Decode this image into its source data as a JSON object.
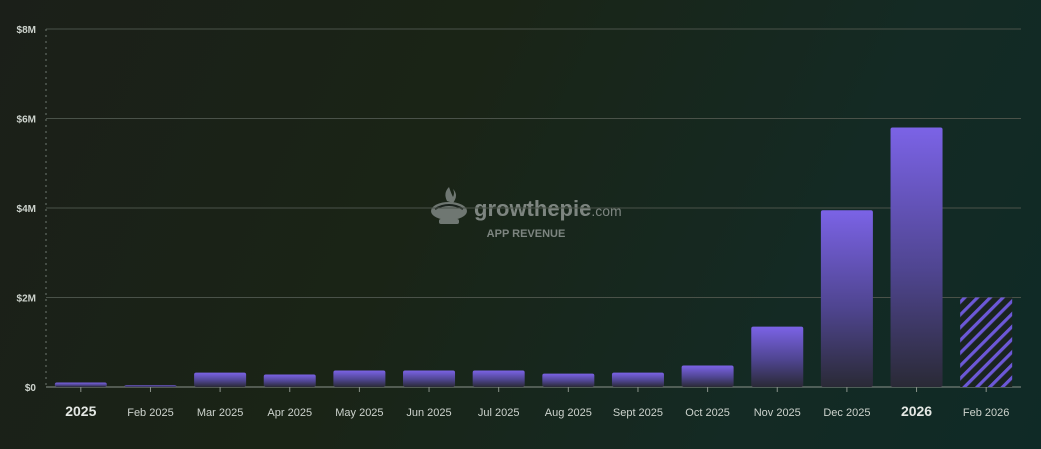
{
  "watermark": {
    "brand_main": "growthepie",
    "brand_tld": ".com",
    "metric": "APP REVENUE"
  },
  "colors": {
    "bar_top": "#7b63e6",
    "bar_bottom": "#2a2a36",
    "grid": "#4a5249",
    "hatch": "#6c58d8"
  },
  "chart_data": {
    "type": "bar",
    "title": "",
    "xlabel": "",
    "ylabel": "",
    "categories": [
      "2025",
      "Feb 2025",
      "Mar 2025",
      "Apr 2025",
      "May 2025",
      "Jun 2025",
      "Jul 2025",
      "Aug 2025",
      "Sept 2025",
      "Oct 2025",
      "Nov 2025",
      "Dec 2025",
      "2026",
      "Feb 2026"
    ],
    "year_labels": [
      "2025",
      "2026"
    ],
    "values": [
      0.1,
      0.04,
      0.32,
      0.28,
      0.37,
      0.37,
      0.37,
      0.3,
      0.32,
      0.48,
      1.35,
      3.95,
      5.8,
      2.0
    ],
    "value_unit": "USD millions",
    "partial_period": "Feb 2026",
    "yticks": [
      0,
      2,
      4,
      6,
      8
    ],
    "ytick_labels": [
      "$0",
      "$2M",
      "$4M",
      "$6M",
      "$8M"
    ],
    "ylim": [
      0,
      8
    ],
    "grid": true,
    "legend": "none"
  }
}
